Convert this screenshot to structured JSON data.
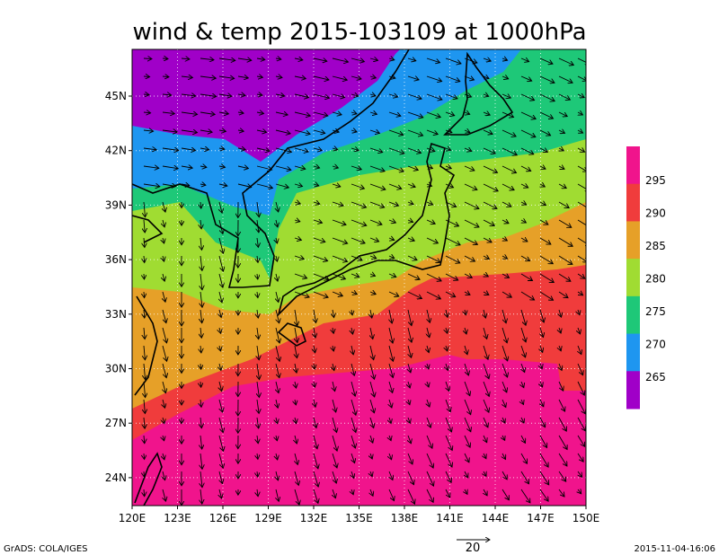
{
  "title": "wind & temp 2015-103109 at 1000hPa",
  "lat_labels": [
    "45N",
    "42N",
    "39N",
    "36N",
    "33N",
    "30N",
    "27N",
    "24N"
  ],
  "lon_labels": [
    "120E",
    "123E",
    "126E",
    "129E",
    "132E",
    "135E",
    "138E",
    "141E",
    "144E",
    "147E",
    "150E"
  ],
  "colorbar_labels": [
    "295",
    "290",
    "285",
    "280",
    "275",
    "270",
    "265"
  ],
  "reference_vector": "20",
  "footer_left": "GrADS: COLA/IGES",
  "footer_right": "2015-11-04-16:06"
}
